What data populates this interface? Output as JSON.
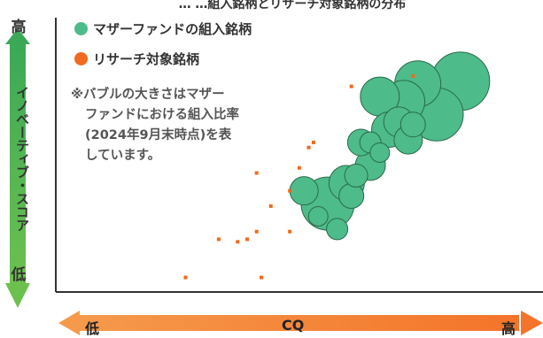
{
  "header_partial": "… …組入銘柄とリサーチ対象銘柄の分布",
  "legend": [
    {
      "label": "マザーファンドの組入銘柄",
      "color": "#4dbb8a"
    },
    {
      "label": "リサーチ対象銘柄",
      "color": "#f06a1e"
    }
  ],
  "note_lines": [
    "※バブルの大きさはマザー",
    "ファンドにおける組入比率",
    "(2024年9月末時点)を表",
    "しています。"
  ],
  "y_axis": {
    "label": "イノベーティブ・スコア",
    "high": "高",
    "low": "低"
  },
  "x_axis": {
    "label": "CQ",
    "low": "低",
    "high": "高"
  },
  "chart_data": {
    "type": "scatter",
    "xlabel": "CQ",
    "ylabel": "イノベーティブ・スコア",
    "xlim": [
      0,
      100
    ],
    "ylim": [
      0,
      100
    ],
    "series": [
      {
        "name": "マザーファンドの組入銘柄",
        "color": "#4dbb8a",
        "points": [
          {
            "x": 85,
            "y": 82,
            "r": 33
          },
          {
            "x": 76,
            "y": 81,
            "r": 26
          },
          {
            "x": 80,
            "y": 69,
            "r": 30
          },
          {
            "x": 73,
            "y": 74,
            "r": 24
          },
          {
            "x": 68,
            "y": 76,
            "r": 22
          },
          {
            "x": 70,
            "y": 63,
            "r": 20
          },
          {
            "x": 72,
            "y": 66,
            "r": 17
          },
          {
            "x": 74,
            "y": 59,
            "r": 16
          },
          {
            "x": 64,
            "y": 58,
            "r": 15
          },
          {
            "x": 66,
            "y": 49,
            "r": 17
          },
          {
            "x": 61,
            "y": 42,
            "r": 20
          },
          {
            "x": 57,
            "y": 34,
            "r": 30
          },
          {
            "x": 52,
            "y": 39,
            "r": 16
          },
          {
            "x": 62,
            "y": 37,
            "r": 14
          },
          {
            "x": 55,
            "y": 29,
            "r": 11
          },
          {
            "x": 66,
            "y": 58,
            "r": 12
          },
          {
            "x": 68,
            "y": 54,
            "r": 11
          },
          {
            "x": 75,
            "y": 65,
            "r": 14
          },
          {
            "x": 59,
            "y": 24,
            "r": 12
          },
          {
            "x": 63,
            "y": 45,
            "r": 13
          }
        ]
      },
      {
        "name": "リサーチ対象銘柄",
        "color": "#f06a1e",
        "points": [
          {
            "x": 27,
            "y": 5
          },
          {
            "x": 43,
            "y": 5
          },
          {
            "x": 34,
            "y": 20
          },
          {
            "x": 38,
            "y": 19
          },
          {
            "x": 40,
            "y": 20
          },
          {
            "x": 42,
            "y": 23
          },
          {
            "x": 49,
            "y": 23
          },
          {
            "x": 45,
            "y": 33
          },
          {
            "x": 49,
            "y": 39
          },
          {
            "x": 42,
            "y": 46
          },
          {
            "x": 53,
            "y": 56
          },
          {
            "x": 54,
            "y": 58
          },
          {
            "x": 51,
            "y": 48
          },
          {
            "x": 62,
            "y": 80
          },
          {
            "x": 75,
            "y": 84
          }
        ]
      }
    ]
  }
}
